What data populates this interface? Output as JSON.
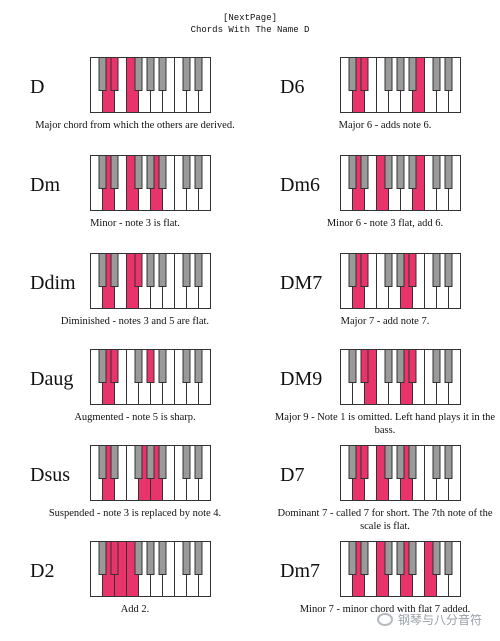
{
  "header": {
    "nav": "[NextPage]",
    "title": "Chords With The Name D"
  },
  "colors": {
    "pressed": "#e8336b",
    "black_key": "#9a9a9a",
    "outline": "#333333"
  },
  "chords": [
    {
      "name": "D",
      "description": "Major chord from which the others are derived.",
      "pressed_white": [
        1,
        3
      ],
      "pressed_black": [
        1
      ]
    },
    {
      "name": "D6",
      "description": "Major 6 - adds note 6.",
      "pressed_white": [
        1,
        6
      ],
      "pressed_black": [
        1
      ]
    },
    {
      "name": "Dm",
      "description": "Minor - note 3 is flat.",
      "pressed_white": [
        1,
        3,
        5
      ],
      "pressed_black": []
    },
    {
      "name": "Dm6",
      "description": "Minor 6 - note 3 flat, add 6.",
      "pressed_white": [
        1,
        3,
        6
      ],
      "pressed_black": []
    },
    {
      "name": "Ddim",
      "description": "Diminished - notes 3 and 5 are flat.",
      "pressed_white": [
        1,
        3
      ],
      "pressed_black": [
        2
      ]
    },
    {
      "name": "DM7",
      "description": "Major 7 - add note 7.",
      "pressed_white": [
        1,
        5
      ],
      "pressed_black": [
        1,
        4
      ]
    },
    {
      "name": "Daug",
      "description": "Augmented - note 5 is sharp.",
      "pressed_white": [
        1
      ],
      "pressed_black": [
        1,
        3
      ]
    },
    {
      "name": "DM9",
      "description": "Major 9 - Note 1 is omitted. Left hand plays it in the bass.",
      "pressed_white": [
        2,
        5
      ],
      "pressed_black": [
        1,
        4
      ]
    },
    {
      "name": "Dsus",
      "description": "Suspended - note 3 is replaced by note 4.",
      "pressed_white": [
        1,
        4,
        5
      ],
      "pressed_black": []
    },
    {
      "name": "D7",
      "description": "Dominant 7 - called 7 for short. The 7th note of the scale is flat.",
      "pressed_white": [
        1,
        3,
        5
      ],
      "pressed_black": [
        1
      ]
    },
    {
      "name": "D2",
      "description": "Add 2.",
      "pressed_white": [
        1,
        2,
        3
      ],
      "pressed_black": [
        1
      ]
    },
    {
      "name": "Dm7",
      "description": "Minor 7 - minor chord with flat 7 added.",
      "pressed_white": [
        1,
        3,
        5,
        7
      ],
      "pressed_black": []
    }
  ],
  "watermark": {
    "text": "钢琴与八分音符",
    "icon": "wechat-icon"
  }
}
